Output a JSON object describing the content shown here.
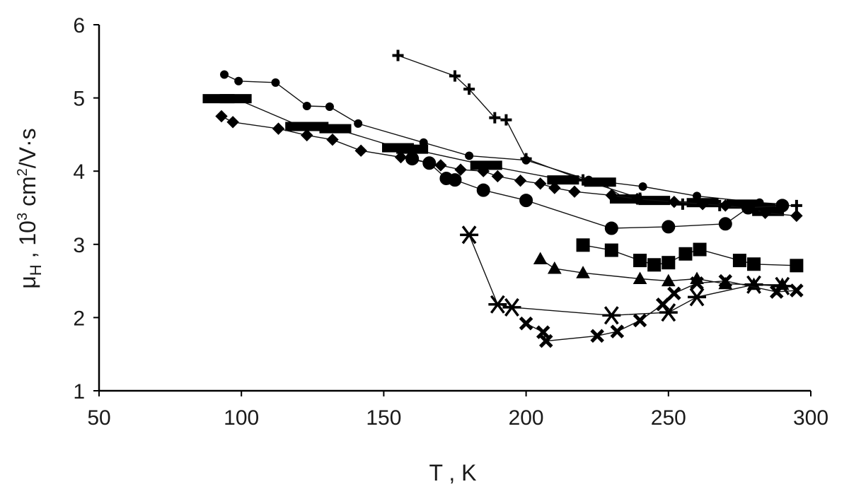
{
  "chart_data": {
    "type": "line",
    "title": "",
    "xlabel": "T , K",
    "ylabel_main": "μ",
    "ylabel_sub": "H",
    "ylabel_mid": " , 10",
    "ylabel_sup": "3",
    "ylabel_tail": " cm",
    "ylabel_sup2": "2",
    "ylabel_end": "/V·s",
    "xlim": [
      50,
      300
    ],
    "ylim": [
      1,
      6
    ],
    "xticks": [
      50,
      100,
      150,
      200,
      250,
      300
    ],
    "yticks": [
      1,
      2,
      3,
      4,
      5,
      6
    ],
    "grid": false,
    "legend": "none",
    "series": [
      {
        "marker": "plus",
        "points": [
          [
            155,
            5.58
          ],
          [
            175,
            5.3
          ],
          [
            180,
            5.12
          ],
          [
            189,
            4.73
          ],
          [
            193,
            4.7
          ],
          [
            200,
            4.17
          ],
          [
            220,
            3.88
          ],
          [
            240,
            3.63
          ],
          [
            255,
            3.55
          ],
          [
            268,
            3.53
          ],
          [
            295,
            3.53
          ]
        ]
      },
      {
        "marker": "small-circle",
        "points": [
          [
            94,
            5.32
          ],
          [
            99,
            5.23
          ],
          [
            112,
            5.21
          ],
          [
            123,
            4.89
          ],
          [
            131,
            4.88
          ],
          [
            141,
            4.65
          ],
          [
            164,
            4.39
          ],
          [
            180,
            4.21
          ],
          [
            200,
            4.15
          ],
          [
            222,
            3.88
          ],
          [
            241,
            3.79
          ],
          [
            260,
            3.66
          ],
          [
            282,
            3.57
          ],
          [
            290,
            3.55
          ]
        ]
      },
      {
        "marker": "dash",
        "points": [
          [
            92,
            4.99
          ],
          [
            98,
            4.99
          ],
          [
            121,
            4.61
          ],
          [
            125,
            4.61
          ],
          [
            133,
            4.58
          ],
          [
            155,
            4.32
          ],
          [
            160,
            4.3
          ],
          [
            186,
            4.08
          ],
          [
            213,
            3.88
          ],
          [
            226,
            3.85
          ],
          [
            235,
            3.62
          ],
          [
            245,
            3.6
          ],
          [
            262,
            3.57
          ],
          [
            276,
            3.55
          ],
          [
            282,
            3.5
          ],
          [
            285,
            3.45
          ]
        ]
      },
      {
        "marker": "diamond",
        "points": [
          [
            93,
            4.75
          ],
          [
            97,
            4.67
          ],
          [
            113,
            4.58
          ],
          [
            123,
            4.49
          ],
          [
            132,
            4.43
          ],
          [
            142,
            4.28
          ],
          [
            156,
            4.19
          ],
          [
            170,
            4.08
          ],
          [
            177,
            4.02
          ],
          [
            185,
            4.0
          ],
          [
            190,
            3.93
          ],
          [
            198,
            3.87
          ],
          [
            205,
            3.83
          ],
          [
            210,
            3.77
          ],
          [
            217,
            3.72
          ],
          [
            230,
            3.67
          ],
          [
            239,
            3.62
          ],
          [
            252,
            3.58
          ],
          [
            262,
            3.55
          ],
          [
            270,
            3.53
          ],
          [
            280,
            3.48
          ],
          [
            284,
            3.43
          ],
          [
            295,
            3.39
          ]
        ]
      },
      {
        "marker": "circle",
        "points": [
          [
            160,
            4.17
          ],
          [
            166,
            4.11
          ],
          [
            172,
            3.9
          ],
          [
            175,
            3.88
          ],
          [
            185,
            3.74
          ],
          [
            200,
            3.6
          ],
          [
            230,
            3.22
          ],
          [
            250,
            3.24
          ],
          [
            270,
            3.28
          ],
          [
            278,
            3.5
          ],
          [
            290,
            3.53
          ]
        ]
      },
      {
        "marker": "square",
        "points": [
          [
            220,
            2.99
          ],
          [
            230,
            2.92
          ],
          [
            240,
            2.78
          ],
          [
            245,
            2.72
          ],
          [
            250,
            2.75
          ],
          [
            256,
            2.87
          ],
          [
            261,
            2.93
          ],
          [
            275,
            2.78
          ],
          [
            280,
            2.73
          ],
          [
            295,
            2.71
          ]
        ]
      },
      {
        "marker": "triangle",
        "points": [
          [
            205,
            2.8
          ],
          [
            210,
            2.67
          ],
          [
            220,
            2.61
          ],
          [
            240,
            2.53
          ],
          [
            250,
            2.5
          ],
          [
            260,
            2.53
          ],
          [
            270,
            2.46
          ],
          [
            280,
            2.45
          ],
          [
            290,
            2.45
          ]
        ]
      },
      {
        "marker": "asterisk",
        "points": [
          [
            180,
            3.13
          ],
          [
            190,
            2.18
          ],
          [
            195,
            2.14
          ],
          [
            230,
            2.03
          ],
          [
            250,
            2.07
          ],
          [
            260,
            2.28
          ],
          [
            280,
            2.45
          ],
          [
            290,
            2.43
          ]
        ]
      },
      {
        "marker": "x",
        "points": [
          [
            200,
            1.92
          ],
          [
            206,
            1.8
          ],
          [
            207,
            1.68
          ],
          [
            225,
            1.75
          ],
          [
            232,
            1.81
          ],
          [
            240,
            1.96
          ],
          [
            248,
            2.18
          ],
          [
            252,
            2.33
          ],
          [
            260,
            2.47
          ],
          [
            270,
            2.5
          ],
          [
            288,
            2.35
          ],
          [
            295,
            2.37
          ]
        ]
      }
    ]
  }
}
